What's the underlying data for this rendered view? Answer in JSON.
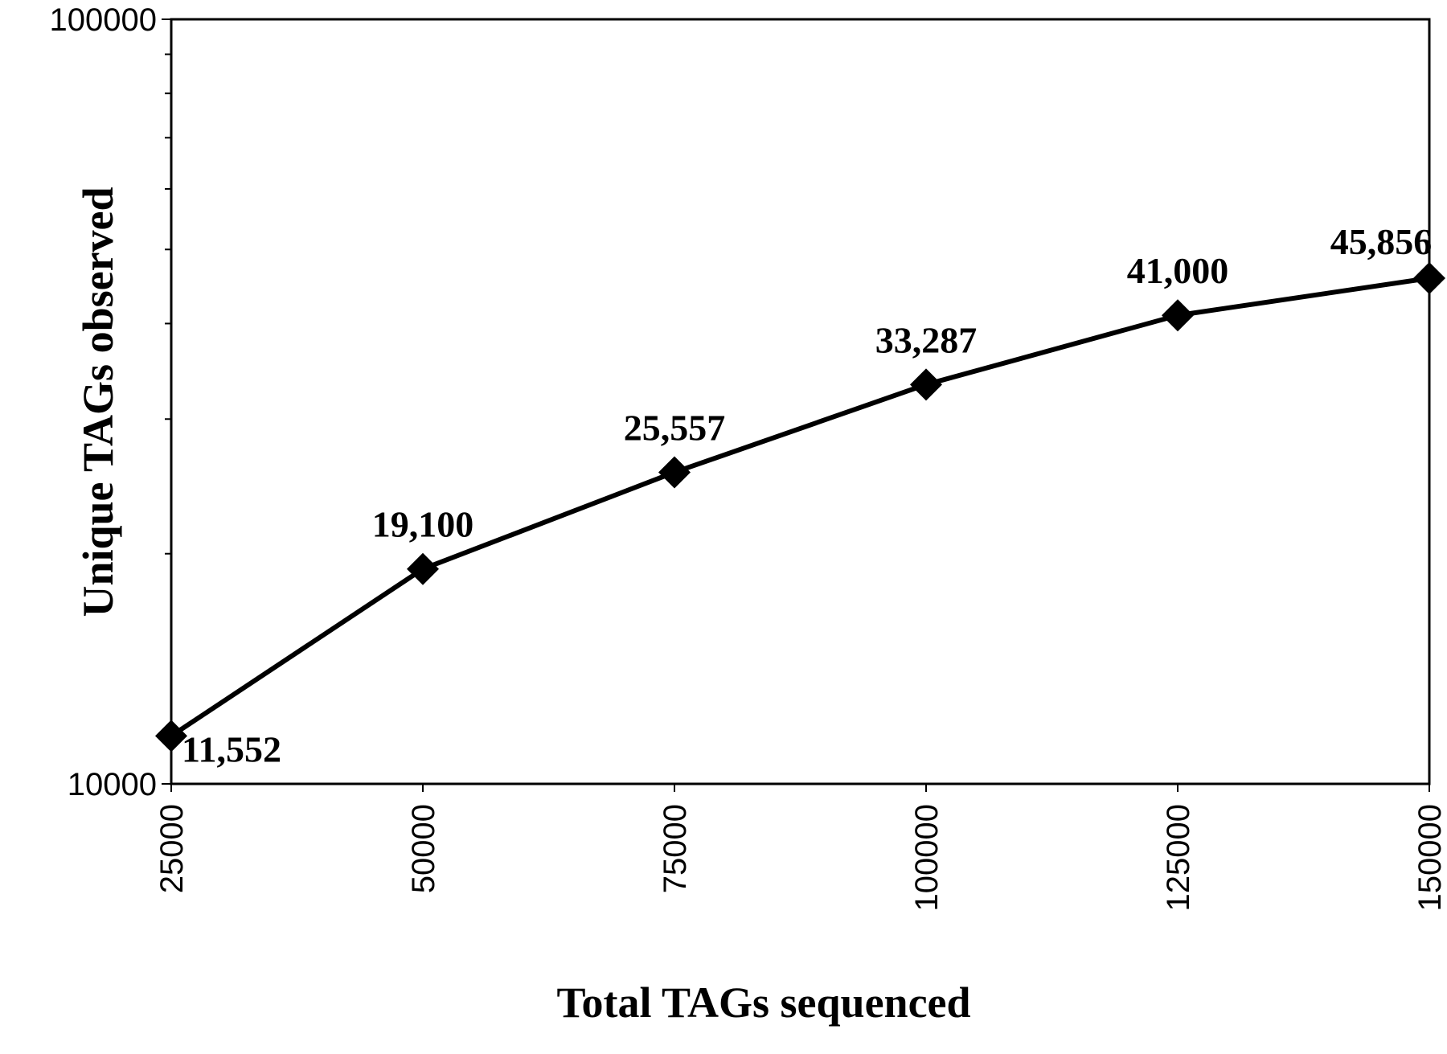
{
  "chart_data": {
    "type": "line",
    "title": "",
    "xlabel": "Total TAGs sequenced",
    "ylabel": "Unique TAGs observed",
    "x": [
      25000,
      50000,
      75000,
      100000,
      125000,
      150000
    ],
    "x_tick_labels": [
      "25000",
      "50000",
      "75000",
      "100000",
      "125000",
      "150000"
    ],
    "y_scale": "log",
    "ylim": [
      10000,
      100000
    ],
    "y_tick_labels": [
      "10000",
      "100000"
    ],
    "series": [
      {
        "values": [
          11552,
          19100,
          25557,
          33287,
          41000,
          45856
        ],
        "data_labels": [
          "11,552",
          "19,100",
          "25,557",
          "33,287",
          "41,000",
          "45,856"
        ],
        "marker": "diamond",
        "color": "#000000"
      }
    ],
    "grid": false,
    "legend": "none"
  }
}
